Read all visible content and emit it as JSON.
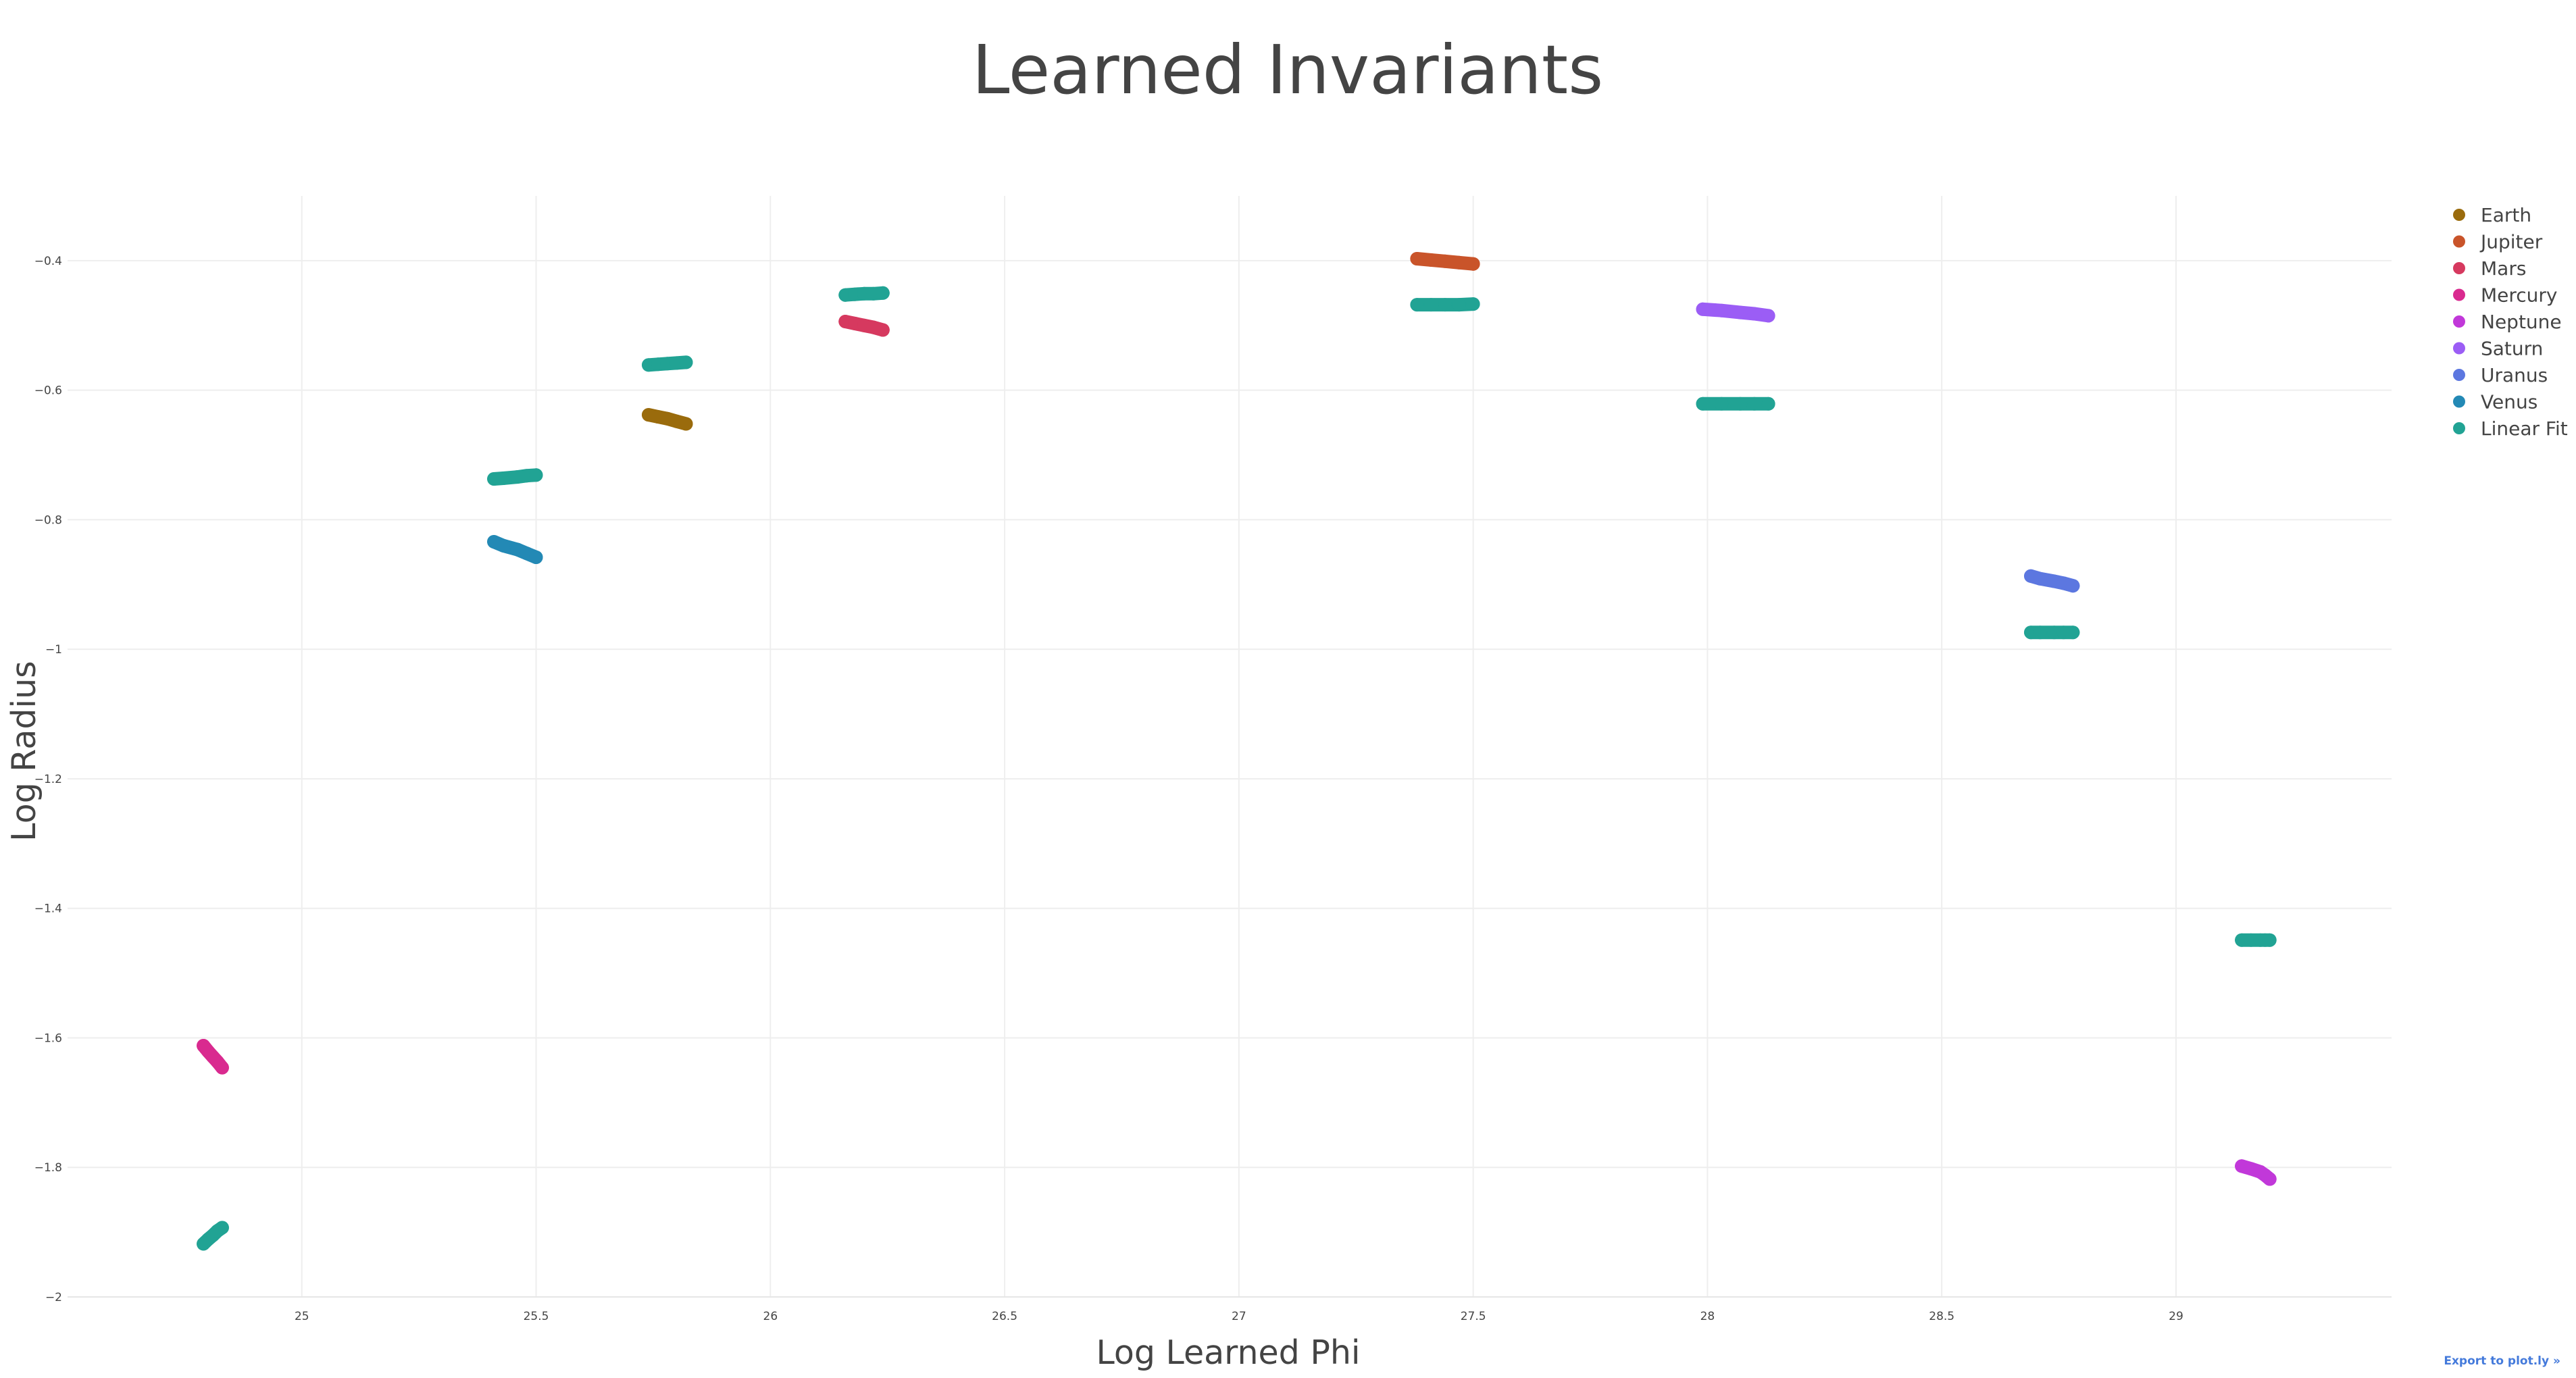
{
  "export_label": "Export to plot.ly »",
  "chart_data": {
    "type": "scatter",
    "title": "Learned Invariants",
    "xlabel": "Log Learned Phi",
    "ylabel": "Log Radius",
    "xlim": [
      24.5,
      29.46
    ],
    "ylim": [
      -2.0,
      -0.3
    ],
    "xticks": [
      25,
      25.5,
      26,
      26.5,
      27,
      27.5,
      28,
      28.5,
      29
    ],
    "xtick_labels": [
      "25",
      "25.5",
      "26",
      "26.5",
      "27",
      "27.5",
      "28",
      "28.5",
      "29"
    ],
    "yticks": [
      -0.4,
      -0.6,
      -0.8,
      -1.0,
      -1.2,
      -1.4,
      -1.6,
      -1.8,
      -2.0
    ],
    "ytick_labels": [
      "−0.4",
      "−0.6",
      "−0.8",
      "−1",
      "−1.2",
      "−1.4",
      "−1.6",
      "−1.8",
      "−2"
    ],
    "grid": true,
    "legend_position": "top-right",
    "series": [
      {
        "name": "Earth",
        "color": "#9a6b0c",
        "points": [
          [
            25.74,
            -0.638
          ],
          [
            25.76,
            -0.641
          ],
          [
            25.78,
            -0.644
          ],
          [
            25.8,
            -0.648
          ],
          [
            25.82,
            -0.652
          ]
        ]
      },
      {
        "name": "Jupiter",
        "color": "#c9542a",
        "points": [
          [
            27.38,
            -0.397
          ],
          [
            27.41,
            -0.399
          ],
          [
            27.44,
            -0.401
          ],
          [
            27.47,
            -0.403
          ],
          [
            27.5,
            -0.405
          ]
        ]
      },
      {
        "name": "Mars",
        "color": "#d6395f",
        "points": [
          [
            26.16,
            -0.494
          ],
          [
            26.18,
            -0.497
          ],
          [
            26.2,
            -0.5
          ],
          [
            26.22,
            -0.503
          ],
          [
            26.24,
            -0.507
          ]
        ]
      },
      {
        "name": "Mercury",
        "color": "#d92a8f",
        "points": [
          [
            24.79,
            -1.612
          ],
          [
            24.8,
            -1.621
          ],
          [
            24.81,
            -1.629
          ],
          [
            24.82,
            -1.637
          ],
          [
            24.83,
            -1.646
          ]
        ]
      },
      {
        "name": "Neptune",
        "color": "#c138d9",
        "points": [
          [
            29.14,
            -1.798
          ],
          [
            29.16,
            -1.802
          ],
          [
            29.18,
            -1.807
          ],
          [
            29.19,
            -1.812
          ],
          [
            29.2,
            -1.818
          ]
        ]
      },
      {
        "name": "Saturn",
        "color": "#9b5df5",
        "points": [
          [
            27.99,
            -0.475
          ],
          [
            28.03,
            -0.477
          ],
          [
            28.07,
            -0.48
          ],
          [
            28.1,
            -0.482
          ],
          [
            28.13,
            -0.485
          ]
        ]
      },
      {
        "name": "Uranus",
        "color": "#5c77e0",
        "points": [
          [
            28.69,
            -0.887
          ],
          [
            28.71,
            -0.891
          ],
          [
            28.74,
            -0.895
          ],
          [
            28.76,
            -0.898
          ],
          [
            28.78,
            -0.902
          ]
        ]
      },
      {
        "name": "Venus",
        "color": "#2389b5",
        "points": [
          [
            25.41,
            -0.834
          ],
          [
            25.43,
            -0.84
          ],
          [
            25.46,
            -0.846
          ],
          [
            25.48,
            -0.852
          ],
          [
            25.5,
            -0.858
          ]
        ]
      },
      {
        "name": "Linear Fit",
        "color": "#21a394",
        "points": [
          [
            24.79,
            -1.918
          ],
          [
            24.8,
            -1.911
          ],
          [
            24.81,
            -1.905
          ],
          [
            24.82,
            -1.898
          ],
          [
            24.83,
            -1.893
          ],
          [
            25.41,
            -0.737
          ],
          [
            25.43,
            -0.736
          ],
          [
            25.46,
            -0.734
          ],
          [
            25.48,
            -0.732
          ],
          [
            25.5,
            -0.731
          ],
          [
            25.74,
            -0.561
          ],
          [
            25.76,
            -0.56
          ],
          [
            25.78,
            -0.559
          ],
          [
            25.8,
            -0.558
          ],
          [
            25.82,
            -0.557
          ],
          [
            26.16,
            -0.453
          ],
          [
            26.18,
            -0.452
          ],
          [
            26.2,
            -0.451
          ],
          [
            26.22,
            -0.451
          ],
          [
            26.24,
            -0.45
          ],
          [
            27.38,
            -0.468
          ],
          [
            27.41,
            -0.468
          ],
          [
            27.44,
            -0.468
          ],
          [
            27.47,
            -0.468
          ],
          [
            27.5,
            -0.467
          ],
          [
            27.99,
            -0.621
          ],
          [
            28.03,
            -0.621
          ],
          [
            28.07,
            -0.621
          ],
          [
            28.1,
            -0.621
          ],
          [
            28.13,
            -0.621
          ],
          [
            28.69,
            -0.974
          ],
          [
            28.71,
            -0.974
          ],
          [
            28.74,
            -0.974
          ],
          [
            28.76,
            -0.974
          ],
          [
            28.78,
            -0.974
          ],
          [
            29.14,
            -1.449
          ],
          [
            29.16,
            -1.449
          ],
          [
            29.18,
            -1.449
          ],
          [
            29.19,
            -1.449
          ],
          [
            29.2,
            -1.449
          ]
        ]
      }
    ]
  }
}
